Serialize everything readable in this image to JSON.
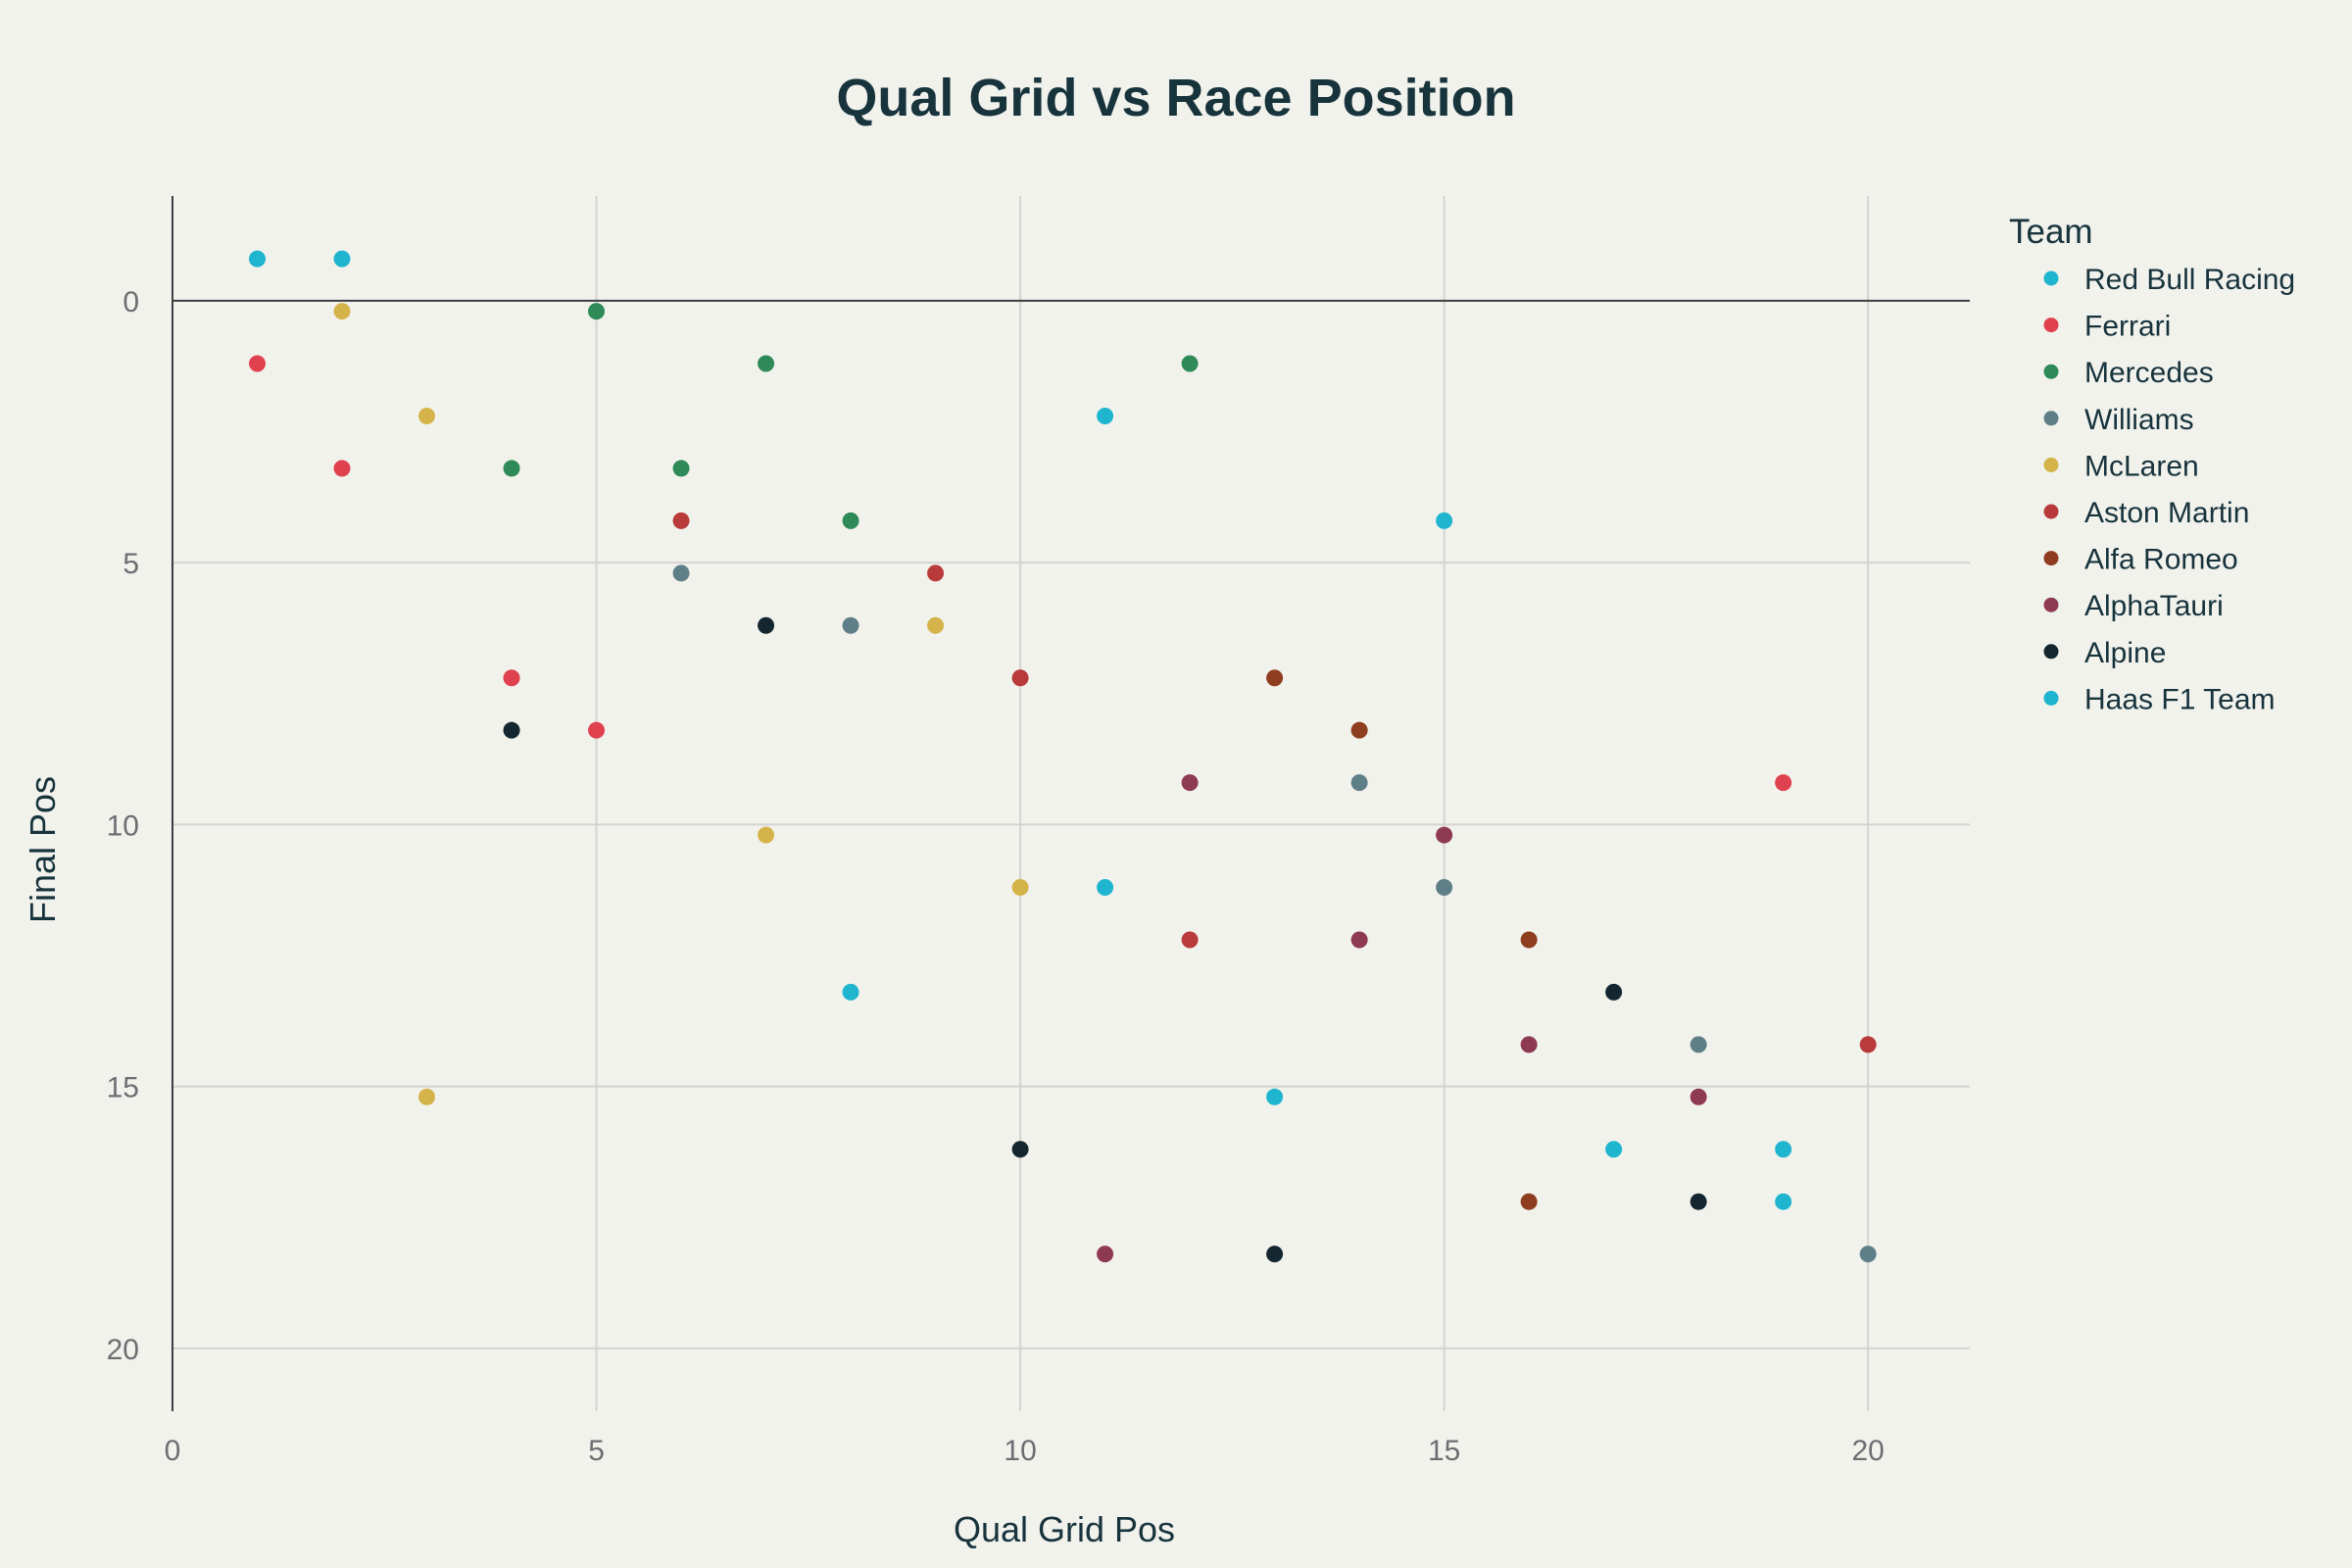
{
  "chart_data": {
    "type": "scatter",
    "title": "Qual Grid vs Race Position",
    "xlabel": "Qual Grid Pos",
    "ylabel": "Final Pos",
    "xlim": [
      0,
      21.2
    ],
    "ylim": [
      21.2,
      -2.0
    ],
    "x_ticks": [
      0,
      5,
      10,
      15,
      20
    ],
    "y_ticks": [
      0,
      5,
      10,
      15,
      20
    ],
    "grid": true,
    "legend_title": "Team",
    "legend_position": "right",
    "series": [
      {
        "name": "Red Bull Racing",
        "color": "#1fb5cf",
        "x": [
          1,
          2,
          11,
          15
        ],
        "y": [
          -0.8,
          -0.8,
          2.2,
          4.2
        ]
      },
      {
        "name": "Ferrari",
        "color": "#e0414e",
        "x": [
          1,
          2,
          4,
          5,
          19
        ],
        "y": [
          1.2,
          3.2,
          7.2,
          8.2,
          9.2
        ]
      },
      {
        "name": "Mercedes",
        "color": "#2e8a57",
        "x": [
          4,
          5,
          6,
          7,
          8,
          12
        ],
        "y": [
          3.2,
          0.2,
          3.2,
          1.2,
          4.2,
          1.2
        ]
      },
      {
        "name": "Williams",
        "color": "#5f7f88",
        "x": [
          6,
          8,
          14,
          15,
          18,
          20
        ],
        "y": [
          5.2,
          6.2,
          9.2,
          11.2,
          14.2,
          18.2
        ]
      },
      {
        "name": "McLaren",
        "color": "#d4b44a",
        "x": [
          2,
          3,
          3,
          7,
          9,
          10
        ],
        "y": [
          0.2,
          2.2,
          15.2,
          10.2,
          6.2,
          11.2
        ]
      },
      {
        "name": "Aston Martin",
        "color": "#b83a3a",
        "x": [
          6,
          9,
          10,
          12,
          20
        ],
        "y": [
          4.2,
          5.2,
          7.2,
          12.2,
          14.2
        ]
      },
      {
        "name": "Alfa Romeo",
        "color": "#8e3e1e",
        "x": [
          13,
          14,
          16,
          16
        ],
        "y": [
          7.2,
          8.2,
          12.2,
          17.2
        ]
      },
      {
        "name": "AlphaTauri",
        "color": "#8e3a52",
        "x": [
          11,
          12,
          14,
          15,
          16,
          18
        ],
        "y": [
          18.2,
          9.2,
          12.2,
          10.2,
          14.2,
          15.2
        ]
      },
      {
        "name": "Alpine",
        "color": "#14262f",
        "x": [
          4,
          7,
          10,
          13,
          17,
          18
        ],
        "y": [
          8.2,
          6.2,
          16.2,
          18.2,
          13.2,
          17.2
        ]
      },
      {
        "name": "Haas F1 Team",
        "color": "#1fb5cf",
        "x": [
          8,
          11,
          13,
          17,
          19,
          19
        ],
        "y": [
          13.2,
          11.2,
          15.2,
          16.2,
          16.2,
          17.2
        ]
      }
    ]
  }
}
